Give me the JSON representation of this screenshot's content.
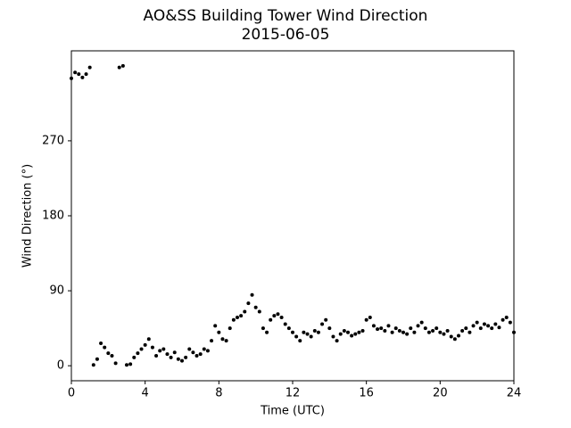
{
  "chart_data": {
    "type": "scatter",
    "title": "AO&SS Building Tower Wind Direction",
    "subtitle": "2015-06-05",
    "x_label": "Time (UTC)",
    "y_label": "Wind Direction (°)",
    "color": "#000000",
    "xlim": [
      0,
      24
    ],
    "xticks": [
      0,
      4,
      8,
      12,
      16,
      20,
      24
    ],
    "ylim": [
      -18,
      378
    ],
    "yticks": [
      0,
      90,
      180,
      270
    ],
    "x": [
      0,
      0.2,
      0.4,
      0.6,
      0.8,
      1.0,
      1.2,
      1.4,
      1.6,
      1.8,
      2.0,
      2.2,
      2.4,
      2.6,
      2.8,
      3.0,
      3.2,
      3.4,
      3.6,
      3.8,
      4.0,
      4.2,
      4.4,
      4.6,
      4.8,
      5.0,
      5.2,
      5.4,
      5.6,
      5.8,
      6.0,
      6.2,
      6.4,
      6.6,
      6.8,
      7.0,
      7.2,
      7.4,
      7.6,
      7.8,
      8.0,
      8.2,
      8.4,
      8.6,
      8.8,
      9.0,
      9.2,
      9.4,
      9.6,
      9.8,
      10.0,
      10.2,
      10.4,
      10.6,
      10.8,
      11.0,
      11.2,
      11.4,
      11.6,
      11.8,
      12.0,
      12.2,
      12.4,
      12.6,
      12.8,
      13.0,
      13.2,
      13.4,
      13.6,
      13.8,
      14.0,
      14.2,
      14.4,
      14.6,
      14.8,
      15.0,
      15.2,
      15.4,
      15.6,
      15.8,
      16.0,
      16.2,
      16.4,
      16.6,
      16.8,
      17.0,
      17.2,
      17.4,
      17.6,
      17.8,
      18.0,
      18.2,
      18.4,
      18.6,
      18.8,
      19.0,
      19.2,
      19.4,
      19.6,
      19.8,
      20.0,
      20.2,
      20.4,
      20.6,
      20.8,
      21.0,
      21.2,
      21.4,
      21.6,
      21.8,
      22.0,
      22.2,
      22.4,
      22.6,
      22.8,
      23.0,
      23.2,
      23.4,
      23.6,
      23.8,
      24.0
    ],
    "values": [
      345,
      352,
      350,
      346,
      350,
      358,
      1,
      8,
      27,
      22,
      15,
      12,
      3,
      358,
      360,
      1,
      2,
      10,
      15,
      20,
      25,
      32,
      22,
      12,
      18,
      20,
      14,
      10,
      16,
      8,
      6,
      10,
      20,
      16,
      12,
      14,
      20,
      18,
      30,
      48,
      40,
      32,
      30,
      45,
      55,
      58,
      60,
      65,
      75,
      85,
      70,
      65,
      45,
      40,
      55,
      60,
      62,
      58,
      50,
      45,
      40,
      35,
      30,
      40,
      38,
      35,
      42,
      40,
      50,
      55,
      45,
      35,
      30,
      38,
      42,
      40,
      36,
      38,
      40,
      42,
      55,
      58,
      48,
      44,
      45,
      42,
      48,
      40,
      45,
      42,
      40,
      38,
      45,
      40,
      48,
      52,
      45,
      40,
      42,
      45,
      40,
      38,
      42,
      35,
      32,
      36,
      42,
      45,
      40,
      48,
      52,
      45,
      50,
      48,
      45,
      50,
      46,
      55,
      58,
      52,
      40
    ]
  }
}
